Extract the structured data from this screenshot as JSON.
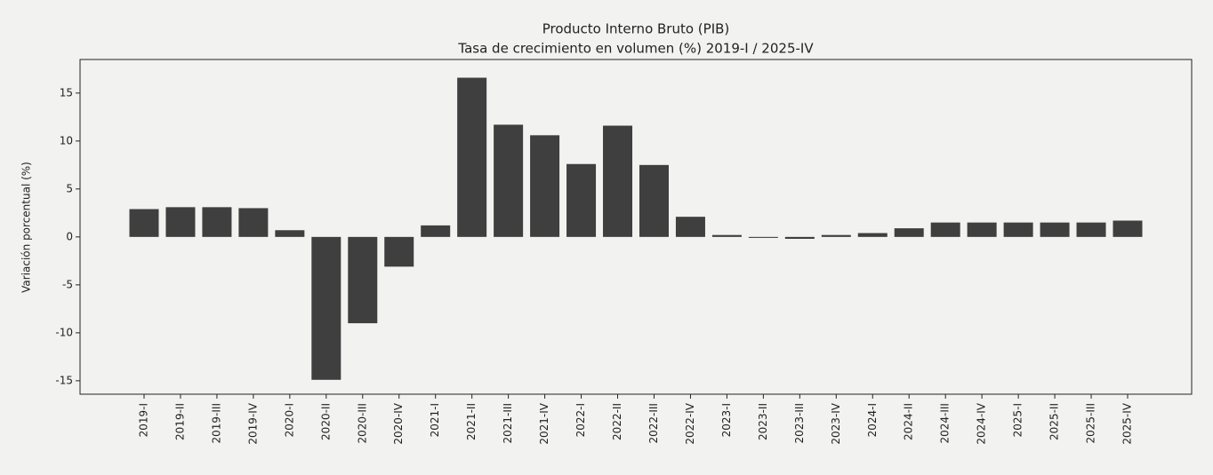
{
  "chart_data": {
    "type": "bar",
    "title": "Producto Interno Bruto (PIB)",
    "subtitle": "Tasa de crecimiento en volumen (%) 2019-I / 2025-IV",
    "y_label": "Variación porcentual (%)",
    "categories": [
      "2019-I",
      "2019-II",
      "2019-III",
      "2019-IV",
      "2020-I",
      "2020-II",
      "2020-III",
      "2020-IV",
      "2021-I",
      "2021-II",
      "2021-III",
      "2021-IV",
      "2022-I",
      "2022-II",
      "2022-III",
      "2022-IV",
      "2023-I",
      "2023-II",
      "2023-III",
      "2023-IV",
      "2024-I",
      "2024-II",
      "2024-III",
      "2024-IV",
      "2025-I",
      "2025-II",
      "2025-III",
      "2025-IV"
    ],
    "values": [
      2.9,
      3.1,
      3.1,
      3.0,
      0.7,
      -14.9,
      -9.0,
      -3.1,
      1.2,
      16.6,
      11.7,
      10.6,
      7.6,
      11.6,
      7.5,
      2.1,
      0.2,
      -0.1,
      -0.2,
      0.2,
      0.4,
      0.9,
      1.5,
      1.5,
      1.5,
      1.5,
      1.5,
      1.7
    ],
    "color": "#3f3f3f",
    "ylim": [
      -16.4,
      18.5
    ],
    "yticks": [
      -15,
      -10,
      -5,
      0,
      5,
      10,
      15
    ],
    "grid": false
  }
}
